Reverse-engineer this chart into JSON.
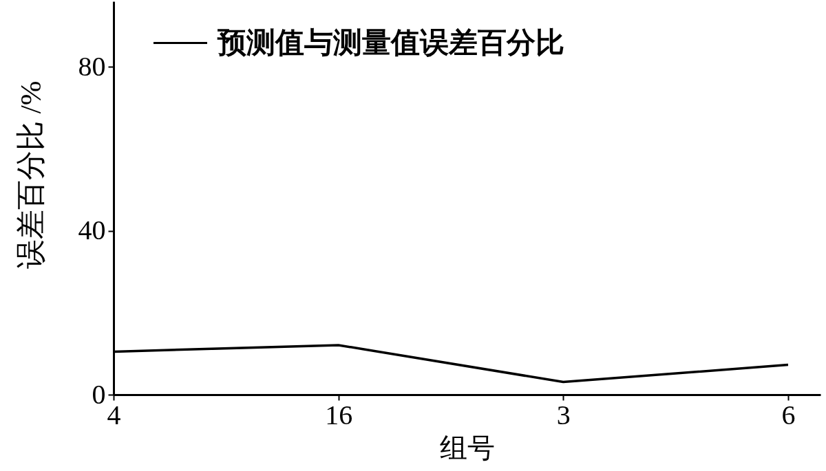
{
  "chart_data": {
    "type": "line",
    "xlabel": "组号",
    "ylabel": "误差百分比 /%",
    "categories": [
      "4",
      "16",
      "3",
      "6"
    ],
    "series": [
      {
        "name": "预测值与测量值误差百分比",
        "color": "#000000",
        "values": [
          10.5,
          12.1,
          3.1,
          7.3
        ]
      }
    ],
    "ylim": [
      0,
      96
    ],
    "yticks": [
      0,
      40,
      80
    ],
    "grid": false,
    "legend": "top left",
    "marker": "none",
    "line_style": "solid"
  }
}
